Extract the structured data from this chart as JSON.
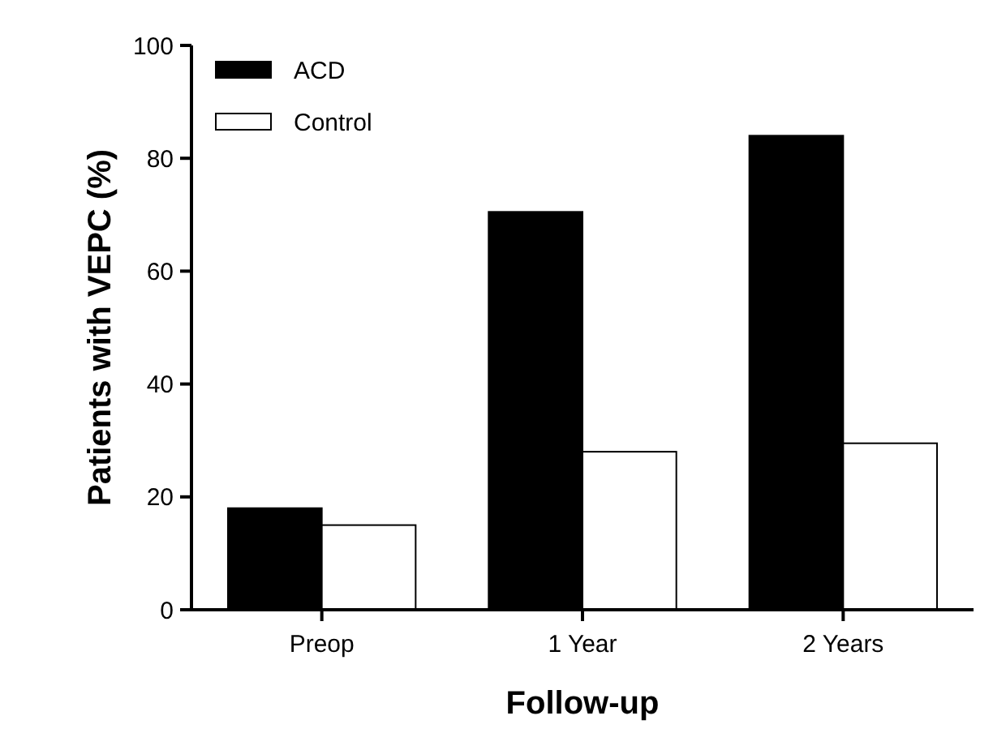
{
  "chart_data": {
    "type": "bar",
    "xlabel": "Follow-up",
    "ylabel": "Patients with VEPC (%)",
    "categories": [
      "Preop",
      "1 Year",
      "2 Years"
    ],
    "series": [
      {
        "name": "ACD",
        "color": "#000000",
        "values": [
          18,
          70.5,
          84
        ]
      },
      {
        "name": "Control",
        "color": "#ffffff",
        "values": [
          15,
          28,
          29.5
        ]
      }
    ],
    "ylim": [
      0,
      100
    ],
    "yticks": [
      0,
      20,
      40,
      60,
      80,
      100
    ],
    "grid": false,
    "legend": "top left"
  }
}
